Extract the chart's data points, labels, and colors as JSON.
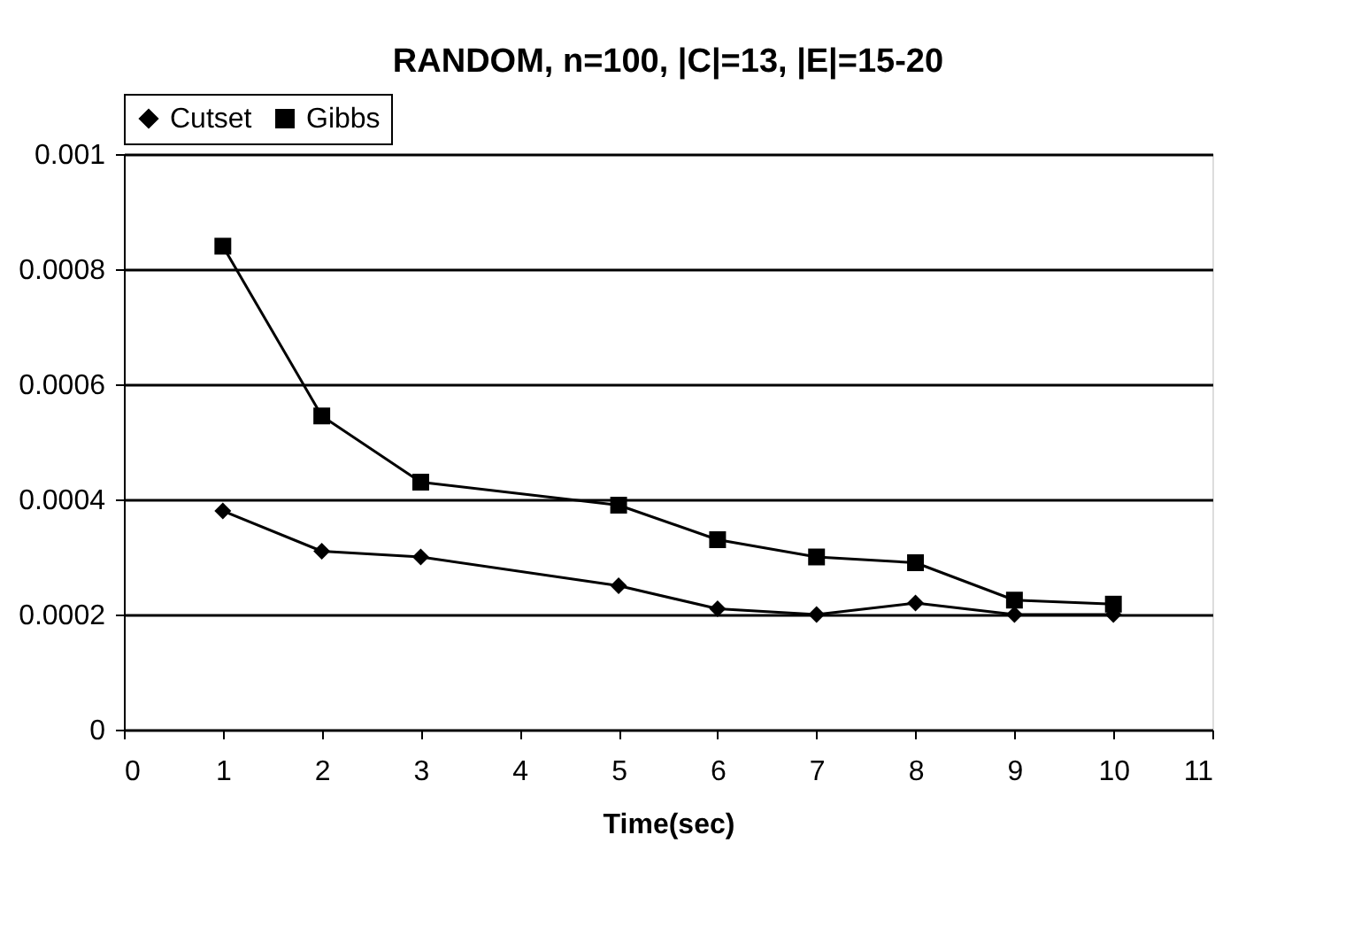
{
  "chart_data": {
    "type": "line",
    "title": "RANDOM, n=100, |C|=13, |E|=15-20",
    "xlabel": "Time(sec)",
    "x": [
      1,
      2,
      3,
      5,
      6,
      7,
      8,
      9,
      10
    ],
    "series": [
      {
        "name": "Cutset",
        "color": "#000000",
        "marker": "diamond",
        "values": [
          0.00038,
          0.00031,
          0.0003,
          0.00025,
          0.00021,
          0.0002,
          0.00022,
          0.0002,
          0.0002
        ]
      },
      {
        "name": "Gibbs",
        "color": "#000000",
        "marker": "square",
        "values": [
          0.00084,
          0.000545,
          0.00043,
          0.00039,
          0.00033,
          0.0003,
          0.00029,
          0.000225,
          0.000218
        ]
      }
    ],
    "xlim": [
      0,
      11
    ],
    "xticks": [
      0,
      1,
      2,
      3,
      4,
      5,
      6,
      7,
      8,
      9,
      10,
      11
    ],
    "ylim": [
      0,
      0.001
    ],
    "yticks": [
      0,
      0.0002,
      0.0004,
      0.0006,
      0.0008,
      0.001
    ],
    "grid": "y",
    "legend": "top",
    "line_style": "solid"
  }
}
